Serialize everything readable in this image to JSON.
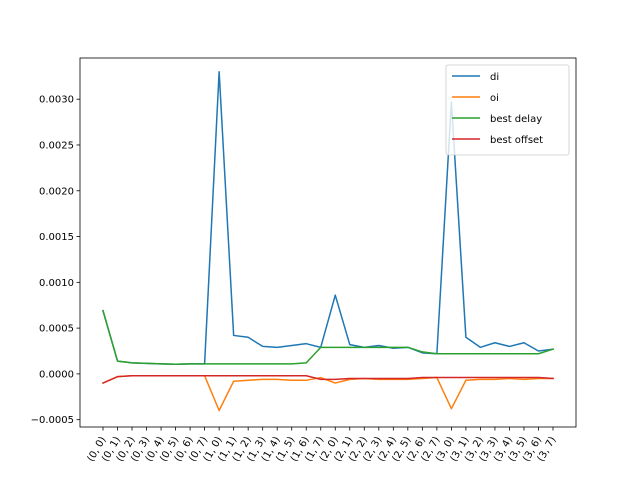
{
  "chart_data": {
    "type": "line",
    "title": "",
    "xlabel": "",
    "ylabel": "",
    "categories": [
      "(0, 0)",
      "(0, 1)",
      "(0, 2)",
      "(0, 3)",
      "(0, 4)",
      "(0, 5)",
      "(0, 6)",
      "(0, 7)",
      "(1, 0)",
      "(1, 1)",
      "(1, 2)",
      "(1, 3)",
      "(1, 4)",
      "(1, 5)",
      "(1, 6)",
      "(1, 7)",
      "(2, 0)",
      "(2, 1)",
      "(2, 2)",
      "(2, 3)",
      "(2, 4)",
      "(2, 5)",
      "(2, 6)",
      "(2, 7)",
      "(3, 0)",
      "(3, 1)",
      "(3, 2)",
      "(3, 3)",
      "(3, 4)",
      "(3, 5)",
      "(3, 6)",
      "(3, 7)"
    ],
    "ylim": [
      -0.00058,
      0.00345
    ],
    "yticks": [
      -0.0005,
      0.0,
      0.0005,
      0.001,
      0.0015,
      0.002,
      0.0025,
      0.003
    ],
    "ytick_labels": [
      "−0.0005",
      "0.0000",
      "0.0005",
      "0.0010",
      "0.0015",
      "0.0020",
      "0.0025",
      "0.0030"
    ],
    "grid": false,
    "legend_position": "top-right",
    "series": [
      {
        "name": "di",
        "color": "#1f77b4",
        "values": [
          0.00069,
          0.00014,
          0.00012,
          0.000115,
          0.00011,
          0.000105,
          0.00011,
          0.00011,
          0.0033,
          0.00042,
          0.0004,
          0.0003,
          0.00029,
          0.00031,
          0.00033,
          0.00029,
          0.00086,
          0.00032,
          0.00029,
          0.00031,
          0.00028,
          0.00029,
          0.00023,
          0.00022,
          0.00297,
          0.0004,
          0.00029,
          0.00034,
          0.0003,
          0.00034,
          0.00025,
          0.00027
        ]
      },
      {
        "name": "oi",
        "color": "#ff7f0e",
        "values": [
          -0.0001,
          -3e-05,
          -2e-05,
          -2e-05,
          -2e-05,
          -2e-05,
          -2e-05,
          -2e-05,
          -0.0004,
          -8e-05,
          -7e-05,
          -6e-05,
          -6e-05,
          -7e-05,
          -7e-05,
          -4e-05,
          -0.0001,
          -6e-05,
          -5e-05,
          -6e-05,
          -6e-05,
          -6e-05,
          -5e-05,
          -4e-05,
          -0.00038,
          -7e-05,
          -6e-05,
          -6e-05,
          -5e-05,
          -6e-05,
          -5e-05,
          -5e-05
        ]
      },
      {
        "name": "best delay",
        "color": "#2ca02c",
        "values": [
          0.00069,
          0.00014,
          0.00012,
          0.000115,
          0.00011,
          0.000105,
          0.00011,
          0.00011,
          0.00011,
          0.00011,
          0.00011,
          0.00011,
          0.00011,
          0.00011,
          0.00012,
          0.00029,
          0.00029,
          0.00029,
          0.00029,
          0.00029,
          0.00029,
          0.00029,
          0.00024,
          0.00022,
          0.00022,
          0.00022,
          0.00022,
          0.00022,
          0.00022,
          0.00022,
          0.00022,
          0.00027
        ]
      },
      {
        "name": "best offset",
        "color": "#d62728",
        "values": [
          -0.0001,
          -3e-05,
          -2e-05,
          -2e-05,
          -2e-05,
          -2e-05,
          -2e-05,
          -2e-05,
          -2e-05,
          -2e-05,
          -2e-05,
          -2e-05,
          -2e-05,
          -2e-05,
          -2e-05,
          -6e-05,
          -6e-05,
          -5e-05,
          -5e-05,
          -5e-05,
          -5e-05,
          -5e-05,
          -4e-05,
          -4e-05,
          -4e-05,
          -4e-05,
          -4e-05,
          -4e-05,
          -4e-05,
          -4e-05,
          -4e-05,
          -5e-05
        ]
      }
    ]
  }
}
